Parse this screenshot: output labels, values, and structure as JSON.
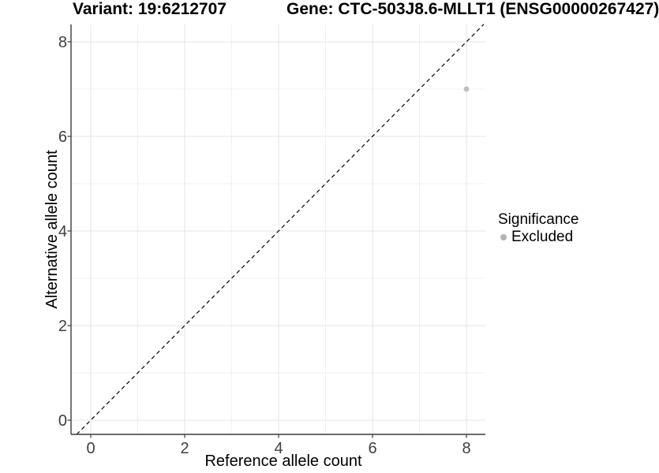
{
  "chart_data": {
    "type": "scatter",
    "title_left": "Variant: 19:6212707",
    "title_right": "Gene: CTC-503J8.6-MLLT1 (ENSG00000267427)",
    "xlabel": "Reference allele count",
    "ylabel": "Alternative allele count",
    "x_ticks": [
      0,
      2,
      4,
      6,
      8
    ],
    "x_tick_labels": [
      "0",
      "2",
      "4",
      "6",
      "8"
    ],
    "y_ticks": [
      0,
      2,
      4,
      6,
      8
    ],
    "y_tick_labels": [
      "0",
      "2",
      "4",
      "6",
      "8"
    ],
    "x_minor_ticks": [
      1,
      3,
      5,
      7
    ],
    "y_minor_ticks": [
      1,
      3,
      5,
      7
    ],
    "xlim": [
      -0.42,
      8.4
    ],
    "ylim": [
      -0.3,
      8.37
    ],
    "grid": true,
    "identity_line": {
      "style": "dashed",
      "from": [
        -0.3,
        -0.3
      ],
      "to": [
        8.37,
        8.37
      ]
    },
    "series": [
      {
        "name": "Excluded",
        "points": [
          {
            "x": 8,
            "y": 7
          }
        ]
      }
    ],
    "legend": {
      "title": "Significance",
      "position": "right",
      "items": [
        {
          "label": "Excluded",
          "color": "#b3b3b3"
        }
      ]
    },
    "colors": {
      "point": "#bdbdbd",
      "grid_major": "#e4e4e4",
      "grid_minor": "#f0f0f0",
      "axis": "#3c3c3c",
      "identity_line": "#000000",
      "tick_text": "#404040",
      "title_text": "#000000"
    }
  }
}
